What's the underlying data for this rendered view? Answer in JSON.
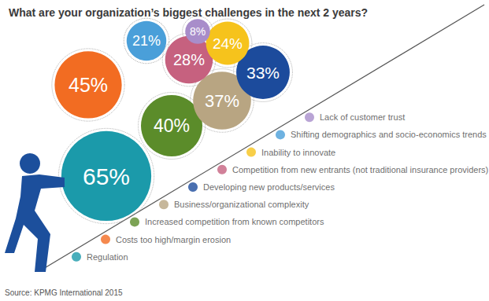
{
  "chart_data": {
    "type": "bubble",
    "title": "What are your organization’s biggest challenges in the next 2 years?",
    "source": "Source: KPMG International 2015",
    "categories": [
      "Regulation",
      "Costs too high/margin erosion",
      "Increased competition from known competitors",
      "Business/organizational complexity",
      "Developing new products/services",
      "Competition from new entrants (not traditional insurance providers)",
      "Inability to innovate",
      "Shifting demographics and socio-economics trends",
      "Lack of customer trust"
    ],
    "values": [
      65,
      45,
      40,
      37,
      33,
      28,
      24,
      21,
      8
    ],
    "value_labels": [
      "65%",
      "45%",
      "40%",
      "37%",
      "33%",
      "28%",
      "24%",
      "21%",
      "8%"
    ],
    "colors": [
      "#1b9aaa",
      "#f26c22",
      "#5b8c2a",
      "#b8a582",
      "#1c4b9c",
      "#c6617f",
      "#f6c31c",
      "#4a9fd9",
      "#a88dca"
    ],
    "data_labels": true,
    "tick_labels": false,
    "grid": false
  }
}
